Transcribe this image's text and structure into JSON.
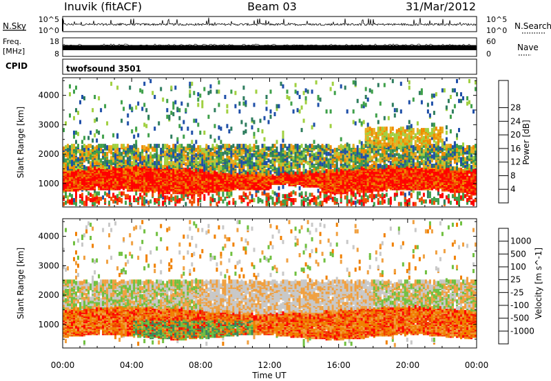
{
  "header": {
    "station": "Inuvik (fitACF)",
    "beam": "Beam 03",
    "date": "31/Mar/2012"
  },
  "strips": {
    "nsky_label": "N.Sky",
    "nsky_ticks": [
      "10^5",
      "10^0"
    ],
    "nsearch_label": "N.Search",
    "nsearch_ticks": [
      "10^5",
      "10^0"
    ],
    "freq_label_1": "Freq.",
    "freq_label_2": "[MHz]",
    "freq_ticks": [
      "18",
      "8"
    ],
    "nave_label": "Nave",
    "nave_ticks": [
      "60",
      "0"
    ],
    "cpid_label": "CPID",
    "cpid_value": "twofsound 3501"
  },
  "chart_data": [
    {
      "type": "heatmap",
      "name": "power",
      "ylabel": "Slant Range [km]",
      "y_ticks": [
        1000,
        2000,
        3000,
        4000
      ],
      "ylim": [
        200,
        4600
      ],
      "x_ticks": [
        "00:00",
        "04:00",
        "08:00",
        "12:00",
        "16:00",
        "20:00",
        "00:00"
      ],
      "xlim_hours": [
        0,
        24
      ],
      "colorbar": {
        "label": "Power [dB]",
        "ticks": [
          "4",
          "8",
          "12",
          "16",
          "20",
          "24",
          "28"
        ],
        "colors": [
          "#0000ff",
          "#1f4fa8",
          "#2e7d5e",
          "#3fa04a",
          "#a0d040",
          "#e8b020",
          "#f08a00",
          "#f05000",
          "#ff0000"
        ]
      },
      "features": [
        {
          "x_hours": [
            0,
            24
          ],
          "range_km": [
            800,
            1500
          ],
          "power_db": 28
        },
        {
          "x_hours": [
            0,
            24
          ],
          "range_km": [
            1600,
            2300
          ],
          "power_db": 14
        },
        {
          "x_hours": [
            17.5,
            22
          ],
          "range_km": [
            2300,
            2900
          ],
          "power_db": 18
        }
      ]
    },
    {
      "type": "heatmap",
      "name": "velocity",
      "ylabel": "Slant Range [km]",
      "y_ticks": [
        1000,
        2000,
        3000,
        4000
      ],
      "ylim": [
        200,
        4600
      ],
      "x_ticks": [
        "00:00",
        "04:00",
        "08:00",
        "12:00",
        "16:00",
        "20:00",
        "00:00"
      ],
      "xlabel": "Time UT",
      "colorbar": {
        "label": "Velocity [m s^-1]",
        "ticks": [
          "1000",
          "500",
          "100",
          "25",
          "-25",
          "-100",
          "-500",
          "-1000"
        ],
        "colors": [
          "#2040a0",
          "#2f6f8f",
          "#3a8a5a",
          "#70c040",
          "#c8c8c8",
          "#f0a040",
          "#f08000",
          "#f04000",
          "#ff0000"
        ]
      },
      "features": [
        {
          "x_hours": [
            0,
            24
          ],
          "range_km": [
            600,
            1500
          ],
          "velocity": -100
        },
        {
          "x_hours": [
            8,
            18
          ],
          "range_km": [
            1800,
            2500
          ],
          "velocity": 0
        },
        {
          "x_hours": [
            4,
            11
          ],
          "range_km": [
            700,
            1200
          ],
          "velocity": 100
        }
      ]
    }
  ]
}
